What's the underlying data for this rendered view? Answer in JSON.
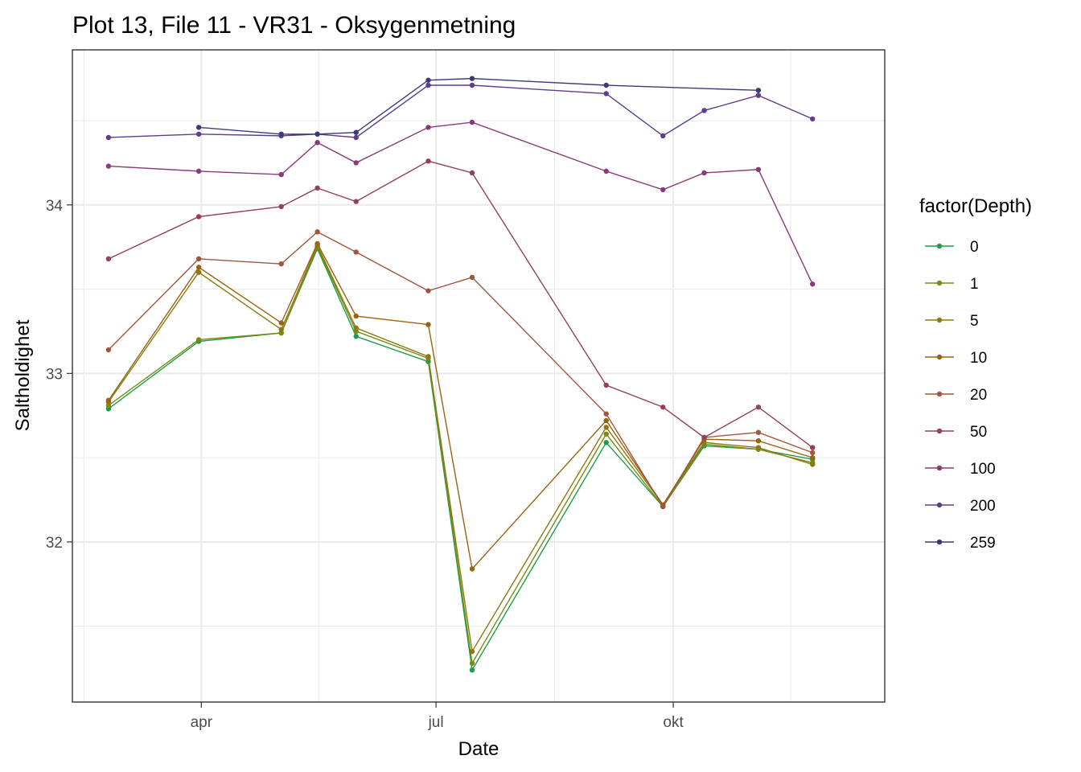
{
  "chart_data": {
    "type": "line",
    "title": "Plot 13, File 11 - VR31  -  Oksygenmetning",
    "xlabel": "Date",
    "ylabel": "Saltholdighet",
    "x_ticks": [
      {
        "date": "2017-04-01",
        "label": "apr"
      },
      {
        "date": "2017-07-01",
        "label": "jul"
      },
      {
        "date": "2017-10-01",
        "label": "okt"
      }
    ],
    "y_ticks": [
      32,
      33,
      34
    ],
    "xlim": [
      "2017-02-10",
      "2017-12-22"
    ],
    "ylim": [
      31.05,
      34.92
    ],
    "legend_title": "factor(Depth)",
    "legend_position": "right",
    "grid": true,
    "dates": [
      "2017-02-24",
      "2017-03-31",
      "2017-05-02",
      "2017-05-16",
      "2017-05-31",
      "2017-06-28",
      "2017-07-15",
      "2017-09-05",
      "2017-09-27",
      "2017-10-13",
      "2017-11-03",
      "2017-11-24"
    ],
    "series": [
      {
        "name": "0",
        "color": "#1b9e4b",
        "values": [
          32.79,
          33.19,
          33.24,
          33.74,
          33.22,
          33.07,
          31.24,
          32.59,
          32.21,
          32.57,
          32.55,
          32.49
        ]
      },
      {
        "name": "1",
        "color": "#7a8b13",
        "values": [
          32.81,
          33.2,
          33.24,
          33.75,
          33.25,
          33.09,
          31.28,
          32.64,
          32.21,
          32.58,
          32.55,
          32.47
        ]
      },
      {
        "name": "5",
        "color": "#8c7a0f",
        "values": [
          32.83,
          33.6,
          33.26,
          33.76,
          33.27,
          33.1,
          31.35,
          32.68,
          32.22,
          32.59,
          32.56,
          32.46
        ]
      },
      {
        "name": "10",
        "color": "#9a6311",
        "values": [
          32.84,
          33.63,
          33.3,
          33.77,
          33.34,
          33.29,
          31.84,
          32.72,
          32.22,
          32.61,
          32.6,
          32.5
        ]
      },
      {
        "name": "20",
        "color": "#a0563c",
        "values": [
          33.14,
          33.68,
          33.65,
          33.84,
          33.72,
          33.49,
          33.57,
          32.76,
          32.21,
          32.62,
          32.65,
          32.53
        ]
      },
      {
        "name": "50",
        "color": "#94405b",
        "values": [
          33.68,
          33.93,
          33.99,
          34.1,
          34.02,
          34.26,
          34.19,
          32.93,
          32.8,
          32.62,
          32.8,
          32.56
        ]
      },
      {
        "name": "100",
        "color": "#883a7a",
        "values": [
          34.23,
          34.2,
          34.18,
          34.37,
          34.25,
          34.46,
          34.49,
          34.2,
          34.09,
          34.19,
          34.21,
          33.53
        ]
      },
      {
        "name": "200",
        "color": "#5f3d8a",
        "values": [
          34.4,
          34.42,
          34.41,
          34.42,
          34.4,
          34.71,
          34.71,
          34.66,
          34.41,
          34.56,
          34.65,
          34.51
        ]
      },
      {
        "name": "259",
        "color": "#3c3b78",
        "values": [
          null,
          34.46,
          34.42,
          34.42,
          34.43,
          34.74,
          34.75,
          34.71,
          null,
          null,
          34.68,
          null
        ]
      }
    ]
  }
}
